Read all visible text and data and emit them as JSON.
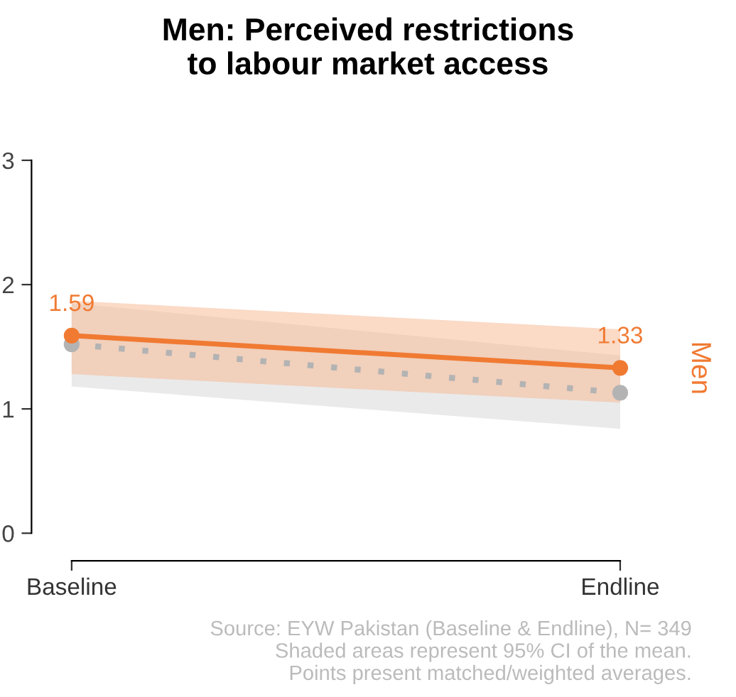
{
  "chart_data": {
    "type": "line",
    "title": "Men: Perceived restrictions\nto labour market access",
    "categories": [
      "Baseline",
      "Endline"
    ],
    "series": [
      {
        "color": "#b3b3b3",
        "values": [
          1.52,
          1.13
        ],
        "lower": [
          1.18,
          0.84
        ],
        "upper": [
          1.85,
          1.43
        ],
        "line_style": "dotted"
      },
      {
        "name": "Men",
        "color": "#f07a32",
        "values": [
          1.59,
          1.33
        ],
        "lower": [
          1.28,
          1.05
        ],
        "upper": [
          1.87,
          1.64
        ],
        "line_style": "solid",
        "value_labels": [
          "1.59",
          "1.33"
        ]
      }
    ],
    "ylim": [
      0,
      3
    ],
    "yticks": [
      0,
      1,
      2,
      3
    ],
    "grid": false,
    "legend": false,
    "marker": "circle",
    "annotations": [
      "Source: EYW Pakistan (Baseline & Endline), N= 349\nShaded areas represent 95% CI of the mean.\nPoints present matched/weighted averages."
    ]
  }
}
